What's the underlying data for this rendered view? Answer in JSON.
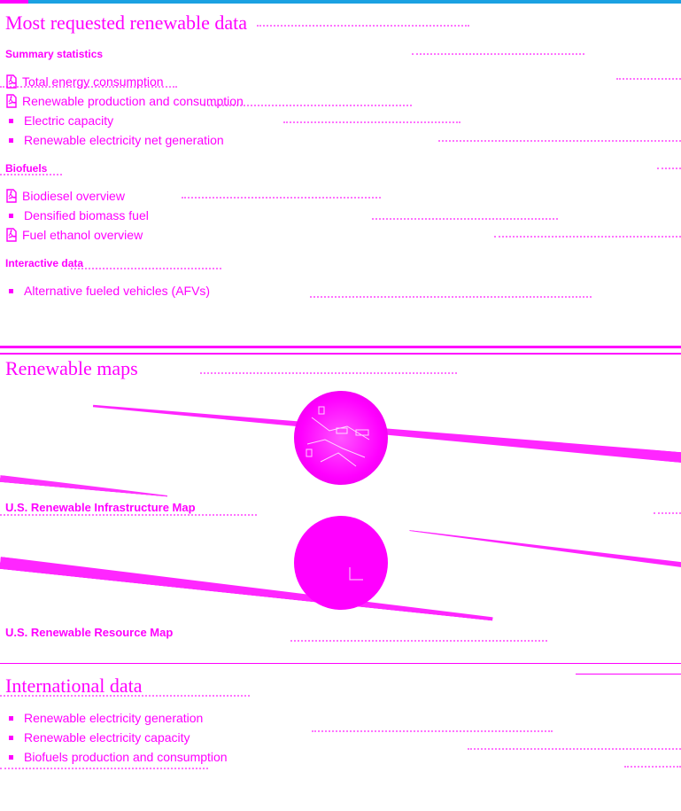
{
  "colors": {
    "accent": "#ff00ff",
    "topbar": "#1ba1e2"
  },
  "most_requested": {
    "title": "Most requested renewable data",
    "summary": {
      "heading": "Summary statistics",
      "items": [
        {
          "label": "Total energy consumption",
          "icon": "pdf-icon"
        },
        {
          "label": "Renewable production and consumption",
          "icon": "pdf-icon"
        },
        {
          "label": "Electric capacity",
          "icon": "bullet"
        },
        {
          "label": "Renewable electricity net generation",
          "icon": "bullet"
        }
      ]
    },
    "biofuels": {
      "heading": "Biofuels",
      "items": [
        {
          "label": "Biodiesel overview",
          "icon": "pdf-icon"
        },
        {
          "label": "Densified biomass fuel",
          "icon": "bullet"
        },
        {
          "label": "Fuel ethanol overview",
          "icon": "pdf-icon"
        }
      ]
    },
    "interactive": {
      "heading": "Interactive data",
      "items": [
        {
          "label": "Alternative fueled vehicles (AFVs)",
          "icon": "bullet"
        }
      ]
    }
  },
  "renewable_maps": {
    "title": "Renewable maps",
    "maps": [
      {
        "label": "U.S. Renewable Infrastructure Map",
        "icon": "map-infrastructure-icon"
      },
      {
        "label": "U.S. Renewable Resource Map",
        "icon": "map-resource-icon"
      }
    ]
  },
  "international": {
    "title": "International data",
    "items": [
      {
        "label": "Renewable electricity generation"
      },
      {
        "label": "Renewable electricity capacity"
      },
      {
        "label": "Biofuels production and consumption"
      }
    ]
  }
}
